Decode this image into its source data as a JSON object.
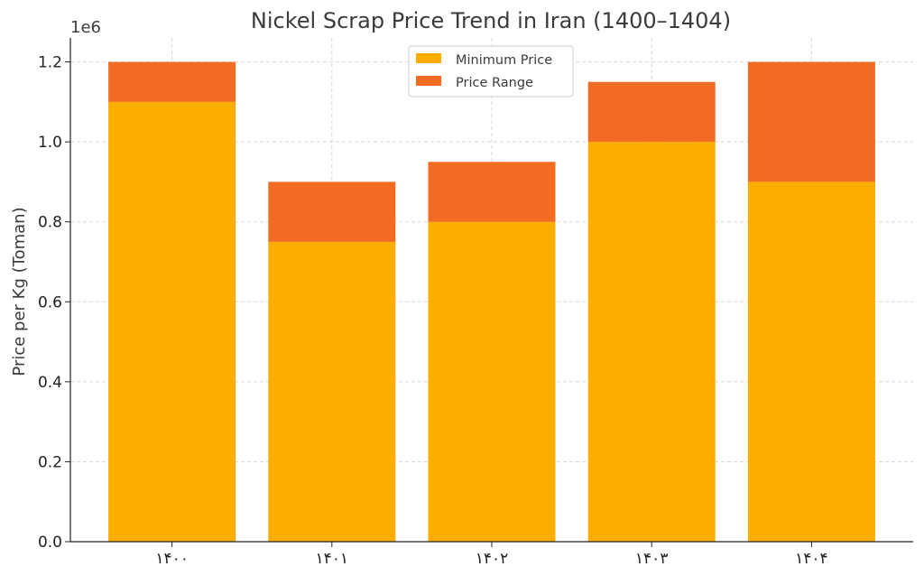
{
  "chart_data": {
    "type": "bar",
    "stacked": true,
    "title": "Nickel Scrap Price Trend in Iran (1400–1404)",
    "xlabel": "",
    "ylabel": "Price per Kg (Toman)",
    "y_multiplier_label": "1e6",
    "categories": [
      "۱۴۰۰",
      "۱۴۰۱",
      "۱۴۰۲",
      "۱۴۰۳",
      "۱۴۰۴"
    ],
    "series": [
      {
        "name": "Minimum Price",
        "color": "#fcae00",
        "values": [
          1100000,
          750000,
          800000,
          1000000,
          900000
        ]
      },
      {
        "name": "Price Range",
        "color": "#f26b22",
        "values": [
          100000,
          150000,
          150000,
          150000,
          300000
        ]
      }
    ],
    "ylim": [
      0,
      1260000
    ],
    "yticks": [
      0,
      200000,
      400000,
      600000,
      800000,
      1000000,
      1200000
    ],
    "ytick_labels": [
      "0.0",
      "0.2",
      "0.4",
      "0.6",
      "0.8",
      "1.0",
      "1.2"
    ],
    "grid": true,
    "legend_position": "top-center"
  }
}
